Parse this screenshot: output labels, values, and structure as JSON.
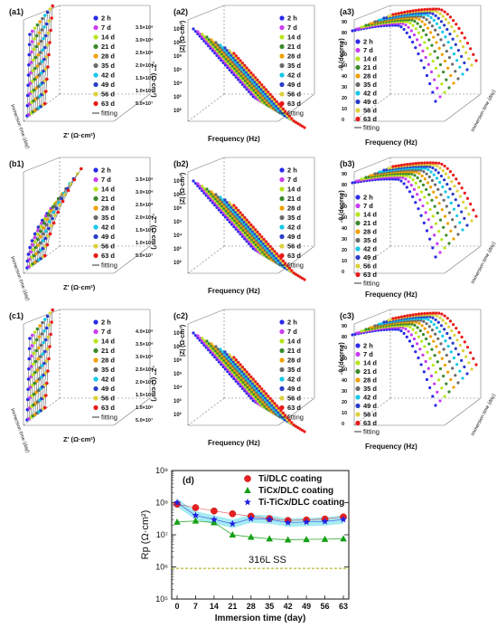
{
  "colors": {
    "2 h": "#2a2ae8",
    "7 d": "#c83cf0",
    "14 d": "#b8e61e",
    "21 d": "#3a8a2a",
    "28 d": "#f0a000",
    "35 d": "#6a6a6a",
    "42 d": "#14c8e6",
    "49 d": "#283cc8",
    "56 d": "#dcd23c",
    "63 d": "#e81a1a",
    "fitting": "#333333",
    "Ti/DLC coating": "#e82020",
    "TiCx/DLC coating": "#16a016",
    "Ti-TiCx/DLC coating": "#2020e0",
    "Ti-TiCx/DLC coating band": "#8fe6f0",
    "316L SS": "#a8a800"
  },
  "legend_series": [
    "2 h",
    "7 d",
    "14 d",
    "21 d",
    "28 d",
    "35 d",
    "42 d",
    "49 d",
    "56 d",
    "63 d"
  ],
  "legend_fit": "fitting",
  "panels": {
    "a1": {
      "label": "(a1)",
      "xlabel": "Z' (Ω·cm²)",
      "ylabel": "-Z'' (Ω·cm²)",
      "depthlabel": "Immersion time (day)",
      "zticks": [
        "3.5×10⁸",
        "3.0×10⁸",
        "2.5×10⁸",
        "2.0×10⁸",
        "1.5×10⁸",
        "1.0×10⁸",
        "5.0×10⁷"
      ]
    },
    "a2": {
      "label": "(a2)",
      "xlabel": "Frequency (Hz)",
      "ylabel": "|Z| (Ω·cm²)",
      "yticks": [
        "10⁸",
        "10⁷",
        "10⁶",
        "10⁵",
        "10⁴",
        "10³",
        "10²"
      ]
    },
    "a3": {
      "label": "(a3)",
      "xlabel": "Frequency (Hz)",
      "ylabel": "-θ (degree)",
      "depthlabel": "Immersion time (day)",
      "yticks": [
        "90",
        "80",
        "70",
        "60",
        "50",
        "40",
        "30",
        "20",
        "10",
        "0"
      ]
    },
    "b1": {
      "label": "(b1)",
      "xlabel": "Z' (Ω·cm²)",
      "ylabel": "-Z'' (Ω·cm²)",
      "depthlabel": "Immersion time (day)",
      "zticks": [
        "3.5×10⁸",
        "3.0×10⁸",
        "2.5×10⁸",
        "2.0×10⁸",
        "1.5×10⁸",
        "1.0×10⁸",
        "5.0×10⁷"
      ]
    },
    "b2": {
      "label": "(b2)",
      "xlabel": "Frequency (Hz)",
      "ylabel": "|Z| (Ω·cm²)",
      "yticks": [
        "10⁸",
        "10⁷",
        "10⁶",
        "10⁵",
        "10⁴",
        "10³",
        "10²"
      ]
    },
    "b3": {
      "label": "(b3)",
      "xlabel": "Frequency (Hz)",
      "ylabel": "-θ (degree)",
      "depthlabel": "Immersion time (day)",
      "yticks": [
        "90",
        "80",
        "70",
        "60",
        "50",
        "40",
        "30",
        "20",
        "10",
        "0"
      ]
    },
    "c1": {
      "label": "(c1)",
      "xlabel": "Z' (Ω·cm²)",
      "ylabel": "-Z'' (Ω·cm²)",
      "depthlabel": "Immersion time (day)",
      "zticks": [
        "4.0×10⁸",
        "3.5×10⁸",
        "3.0×10⁸",
        "2.5×10⁸",
        "2.0×10⁸",
        "1.5×10⁸",
        "1.0×10⁸",
        "5.0×10⁷"
      ]
    },
    "c2": {
      "label": "(c2)",
      "xlabel": "Frequency (Hz)",
      "ylabel": "|Z| (Ω·cm²)",
      "yticks": [
        "10⁸",
        "10⁷",
        "10⁶",
        "10⁵",
        "10⁴",
        "10³",
        "10²"
      ]
    },
    "c3": {
      "label": "(c3)",
      "xlabel": "Frequency (Hz)",
      "ylabel": "-θ (degree)",
      "depthlabel": "Immersion time (day)",
      "yticks": [
        "90",
        "80",
        "70",
        "60",
        "50",
        "40",
        "30",
        "20",
        "10",
        "0"
      ]
    }
  },
  "chart_data": {
    "type": "line",
    "label": "(d)",
    "xlabel": "Immersion time (day)",
    "ylabel": "Rp (Ω·cm²)",
    "x": [
      0,
      7,
      14,
      21,
      28,
      35,
      42,
      49,
      56,
      63
    ],
    "xticks": [
      "0",
      "7",
      "14",
      "21",
      "28",
      "35",
      "42",
      "49",
      "56",
      "63"
    ],
    "yscale": "log",
    "ylim": [
      100000,
      1000000000
    ],
    "yticks": [
      "10⁹",
      "10⁸",
      "10⁷",
      "10⁶",
      "10⁵"
    ],
    "legend_position": "top-right",
    "series": [
      {
        "name": "Ti/DLC coating",
        "marker": "circle",
        "values": [
          90000000,
          70000000,
          55000000,
          45000000,
          38000000,
          32000000,
          28000000,
          29000000,
          31000000,
          36000000
        ]
      },
      {
        "name": "TiCx/DLC coating",
        "marker": "triangle",
        "values": [
          25000000,
          27000000,
          24000000,
          10000000,
          8500000,
          7500000,
          7000000,
          7200000,
          7300000,
          7500000
        ]
      },
      {
        "name": "Ti-TiCx/DLC coating",
        "marker": "star",
        "values": [
          100000000,
          40000000,
          30000000,
          22000000,
          32000000,
          30000000,
          24000000,
          25000000,
          26000000,
          30000000
        ]
      }
    ],
    "reference": {
      "name": "316L SS",
      "value": 900000,
      "style": "dashed"
    }
  }
}
